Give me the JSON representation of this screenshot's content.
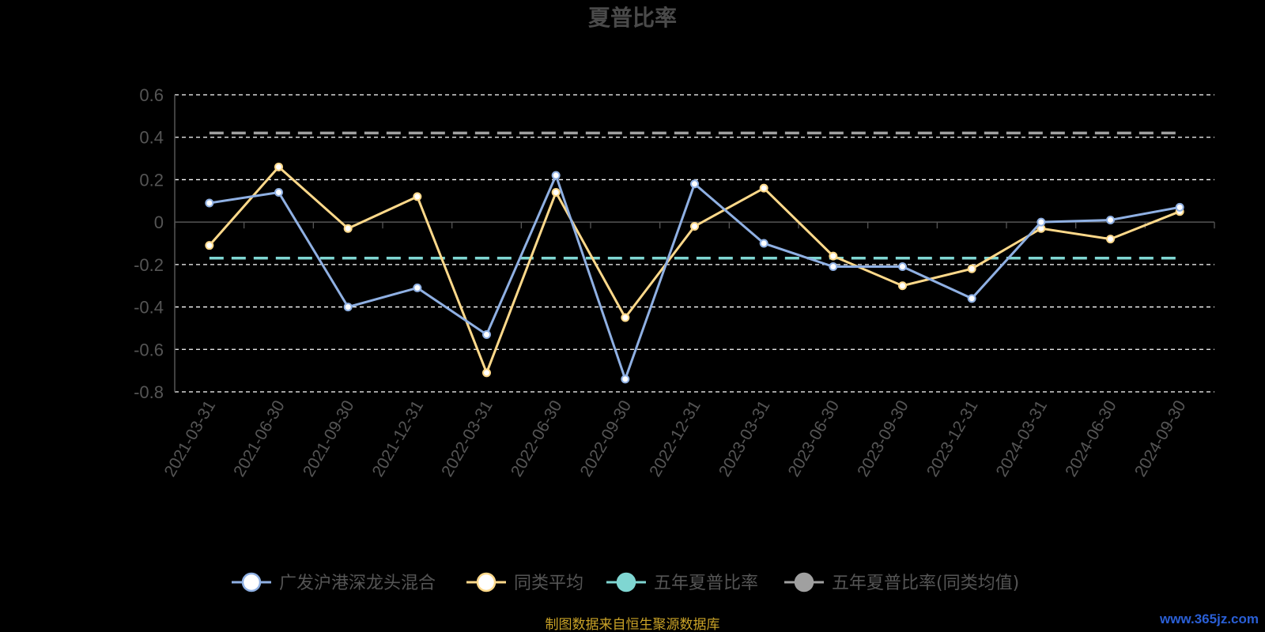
{
  "chart_data": {
    "type": "line",
    "title": "夏普比率",
    "categories": [
      "2021-03-31",
      "2021-06-30",
      "2021-09-30",
      "2021-12-31",
      "2022-03-31",
      "2022-06-30",
      "2022-09-30",
      "2022-12-31",
      "2023-03-31",
      "2023-06-30",
      "2023-09-30",
      "2023-12-31",
      "2024-03-31",
      "2024-06-30",
      "2024-09-30"
    ],
    "ylim": [
      -0.8,
      0.6
    ],
    "yticks": [
      0.6,
      0.4,
      0.2,
      0,
      -0.2,
      -0.4,
      -0.6,
      -0.8
    ],
    "ytick_labels": [
      "0.6",
      "0.4",
      "0.2",
      "0",
      "-0.2",
      "-0.4",
      "-0.6",
      "-0.8"
    ],
    "grid": true,
    "legend_position": "bottom-center",
    "series": [
      {
        "name": "广发沪港深龙头混合",
        "color": "#8fb0e3",
        "style": "solid-markers",
        "values": [
          0.09,
          0.14,
          -0.4,
          -0.31,
          -0.53,
          0.22,
          -0.74,
          0.18,
          -0.1,
          -0.21,
          -0.21,
          -0.36,
          0.0,
          0.01,
          0.07
        ]
      },
      {
        "name": "同类平均",
        "color": "#ffd98a",
        "style": "solid-markers",
        "values": [
          -0.11,
          0.26,
          -0.03,
          0.12,
          -0.71,
          0.14,
          -0.45,
          -0.02,
          0.16,
          -0.16,
          -0.3,
          -0.22,
          -0.03,
          -0.08,
          0.05
        ]
      },
      {
        "name": "五年夏普比率",
        "color": "#7fd6d2",
        "style": "dashed-constant",
        "values": [
          -0.17,
          -0.17,
          -0.17,
          -0.17,
          -0.17,
          -0.17,
          -0.17,
          -0.17,
          -0.17,
          -0.17,
          -0.17,
          -0.17,
          -0.17,
          -0.17,
          -0.17
        ]
      },
      {
        "name": "五年夏普比率(同类均值)",
        "color": "#a0a0a0",
        "style": "dashed-constant",
        "values": [
          0.42,
          0.42,
          0.42,
          0.42,
          0.42,
          0.42,
          0.42,
          0.42,
          0.42,
          0.42,
          0.42,
          0.42,
          0.42,
          0.42,
          0.42
        ]
      }
    ]
  },
  "footer": {
    "source": "制图数据来自恒生聚源数据库",
    "watermark": "www.365jz.com"
  },
  "colors": {
    "background": "#000000",
    "grid": "#ffffff",
    "axis": "#555555"
  }
}
